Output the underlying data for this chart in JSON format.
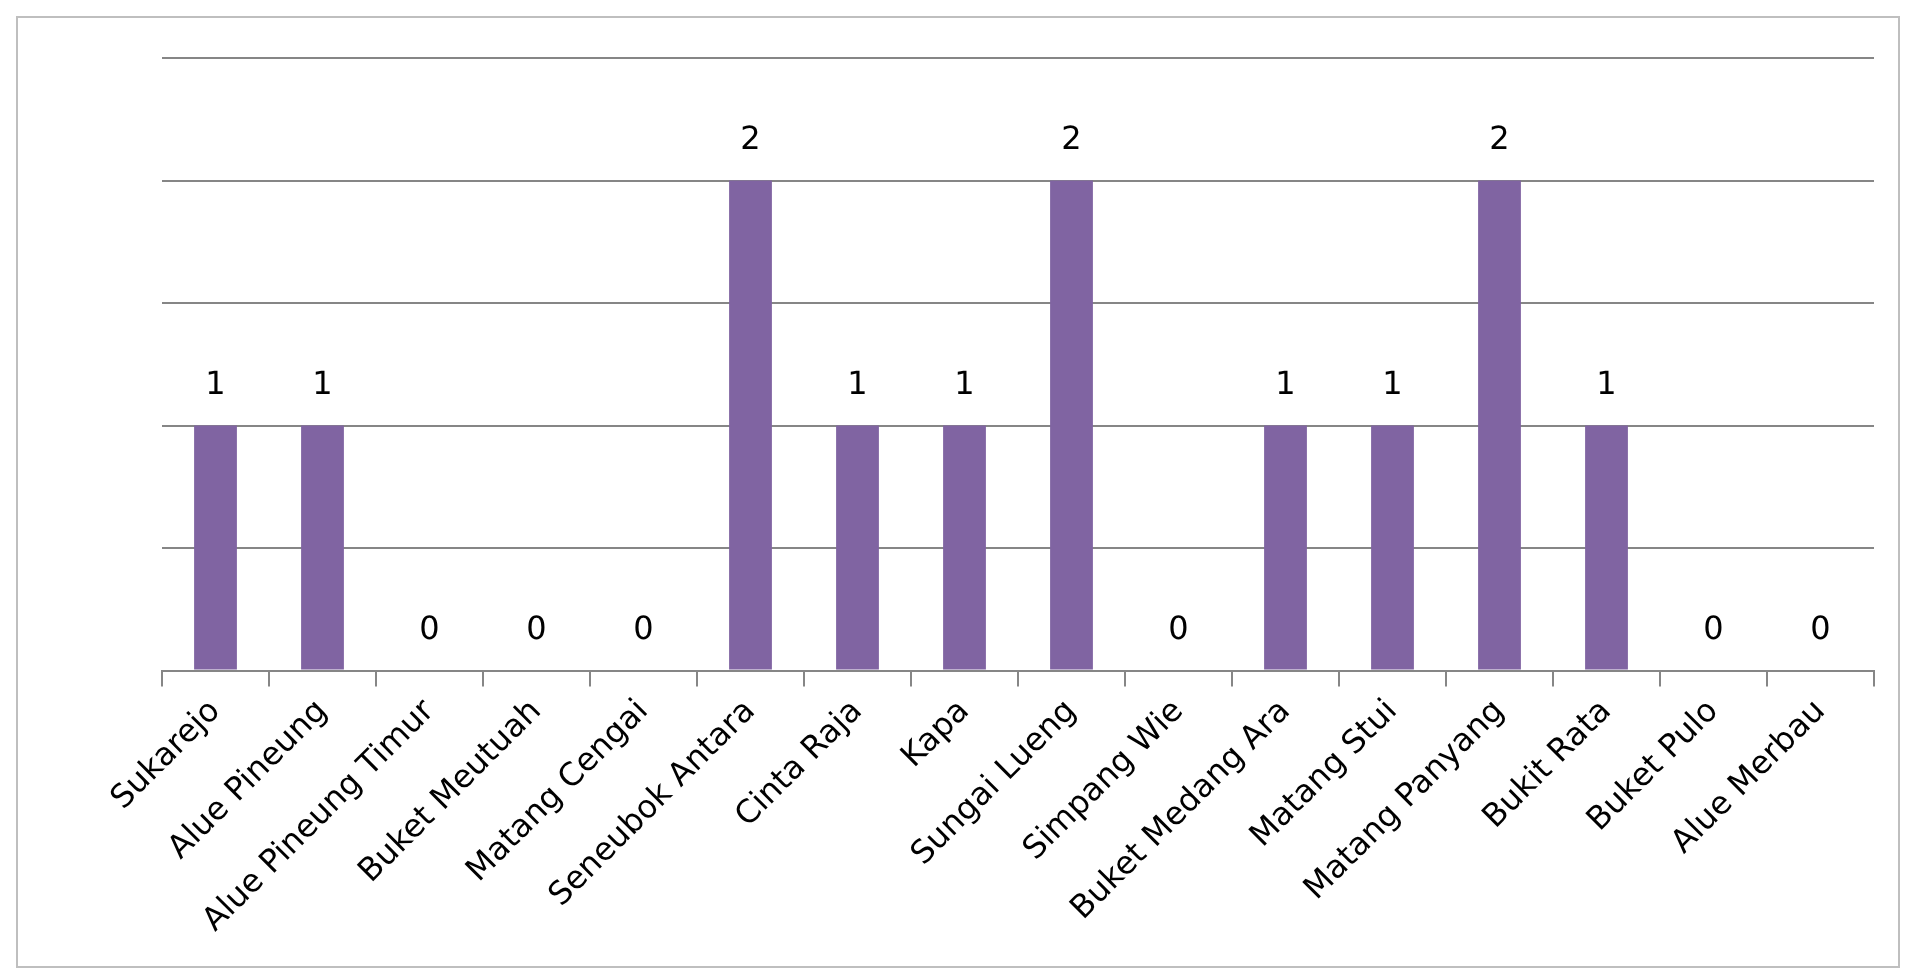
{
  "chart_data": {
    "type": "bar",
    "categories": [
      "Sukarejo",
      "Alue Pineung",
      "Alue Pineung Timur",
      "Buket Meutuah",
      "Matang Cengai",
      "Seneubok Antara",
      "Cinta Raja",
      "Kapa",
      "Sungai Lueng",
      "Simpang Wie",
      "Buket Medang Ara",
      "Matang Stui",
      "Matang Panyang",
      "Bukit Rata",
      "Buket Pulo",
      "Alue Merbau"
    ],
    "values": [
      1,
      1,
      0,
      0,
      0,
      2,
      1,
      1,
      2,
      0,
      1,
      1,
      2,
      1,
      0,
      0
    ],
    "color": "#8064a2",
    "ylim": [
      0,
      2.5
    ],
    "yticks": [
      {
        "value": 0,
        "label": null
      },
      {
        "value": 0.5,
        "label": null
      },
      {
        "value": 1,
        "label": null
      },
      {
        "value": 1.5,
        "label": null
      },
      {
        "value": 2,
        "label": null
      },
      {
        "value": 2.5,
        "label": null
      }
    ],
    "grid": "y",
    "tick_labels": "x",
    "data_labels": true,
    "legend": false
  }
}
